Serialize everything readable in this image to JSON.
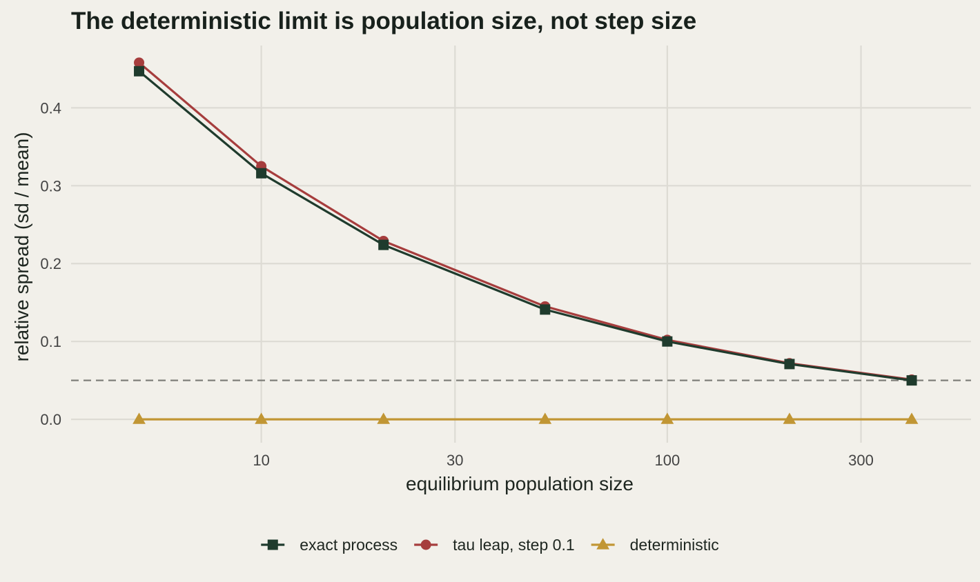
{
  "chart_data": {
    "type": "line",
    "title": "The deterministic limit is population size, not step size",
    "xlabel": "equilibrium population size",
    "ylabel": "relative spread (sd / mean)",
    "x_scale": "log",
    "x": [
      5,
      10,
      20,
      50,
      100,
      200,
      400
    ],
    "x_ticks": [
      10,
      30,
      100,
      300
    ],
    "x_tick_labels": [
      "10",
      "30",
      "100",
      "300"
    ],
    "y_ticks": [
      0,
      0.1,
      0.2,
      0.3,
      0.4
    ],
    "y_tick_labels": [
      "0.0",
      "0.1",
      "0.2",
      "0.3",
      "0.4"
    ],
    "ylim": [
      -0.03,
      0.48
    ],
    "grid": true,
    "legend_position": "bottom",
    "reference_line": {
      "y": 0.05,
      "style": "dashed",
      "color": "#7f7f7a"
    },
    "series": [
      {
        "name": "exact process",
        "marker": "square",
        "color": "#1f3b2d",
        "values": [
          0.447,
          0.316,
          0.224,
          0.141,
          0.1,
          0.071,
          0.05
        ]
      },
      {
        "name": "tau leap, step 0.1",
        "marker": "circle",
        "color": "#a63d3d",
        "values": [
          0.458,
          0.325,
          0.229,
          0.145,
          0.102,
          0.072,
          0.051
        ]
      },
      {
        "name": "deterministic",
        "marker": "triangle",
        "color": "#c19634",
        "values": [
          0,
          0,
          0,
          0,
          0,
          0,
          0
        ]
      }
    ]
  },
  "colors": {
    "background": "#f2f0ea",
    "grid": "#dddbd4"
  }
}
